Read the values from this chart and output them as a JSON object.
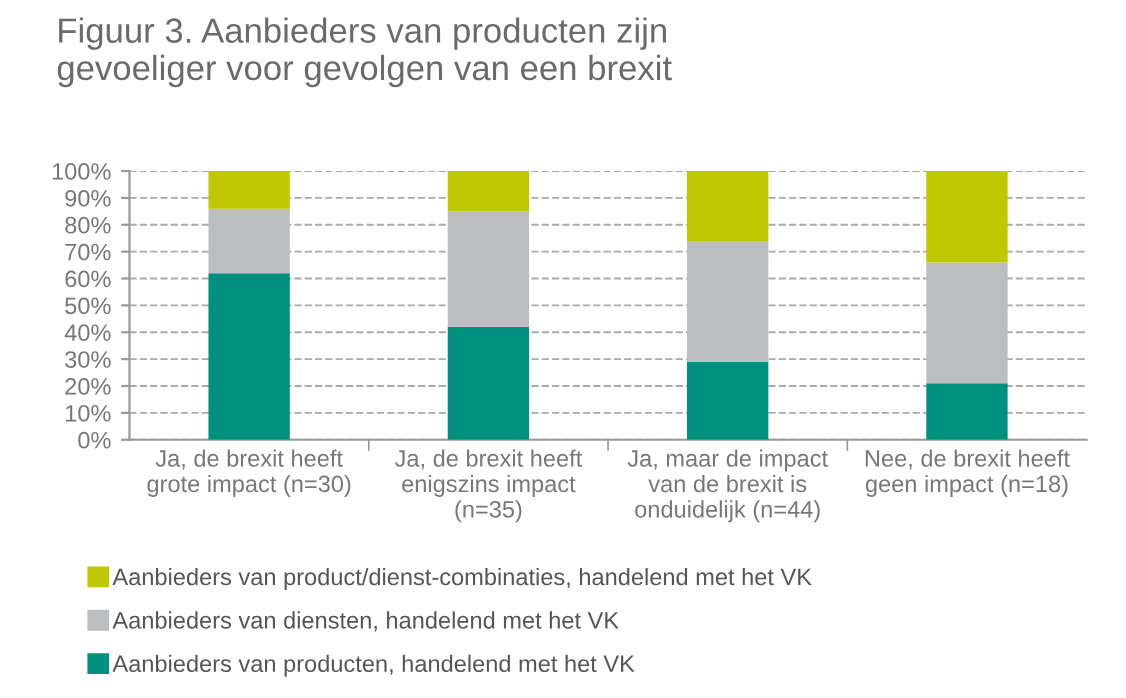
{
  "chart_data": {
    "type": "bar",
    "title": "Figuur 3. Aanbieders van producten zijn\ngevoeliger voor gevolgen van een brexit",
    "categories": [
      "Ja, de brexit heeft\ngrote impact (n=30)",
      "Ja, de brexit heeft\nenigszins impact\n(n=35)",
      "Ja, maar de impact\nvan de brexit is\nonduidelijk (n=44)",
      "Nee, de brexit heeft\ngeen impact (n=18)"
    ],
    "series": [
      {
        "name": "Aanbieders van producten, handelend met het VK",
        "color": "#009080",
        "values": [
          62,
          42,
          29,
          21
        ]
      },
      {
        "name": "Aanbieders van diensten, handelend met het VK",
        "color": "#bbbdc0",
        "values": [
          24,
          43,
          45,
          45
        ]
      },
      {
        "name": "Aanbieders van product/dienst-combinaties, handelend met het VK",
        "color": "#bfc800",
        "values": [
          14,
          15,
          26,
          34
        ]
      }
    ],
    "stacked": true,
    "ylim": [
      0,
      100
    ],
    "yticks": [
      {
        "value": 0,
        "label": "0%"
      },
      {
        "value": 10,
        "label": "10%"
      },
      {
        "value": 20,
        "label": "20%"
      },
      {
        "value": 30,
        "label": "30%"
      },
      {
        "value": 40,
        "label": "40%"
      },
      {
        "value": 50,
        "label": "50%"
      },
      {
        "value": 60,
        "label": "60%"
      },
      {
        "value": 70,
        "label": "70%"
      },
      {
        "value": 80,
        "label": "80%"
      },
      {
        "value": 90,
        "label": "90%"
      },
      {
        "value": 100,
        "label": "100%"
      }
    ],
    "grid": "y",
    "line_style": "dashed",
    "legend": "bottom"
  }
}
